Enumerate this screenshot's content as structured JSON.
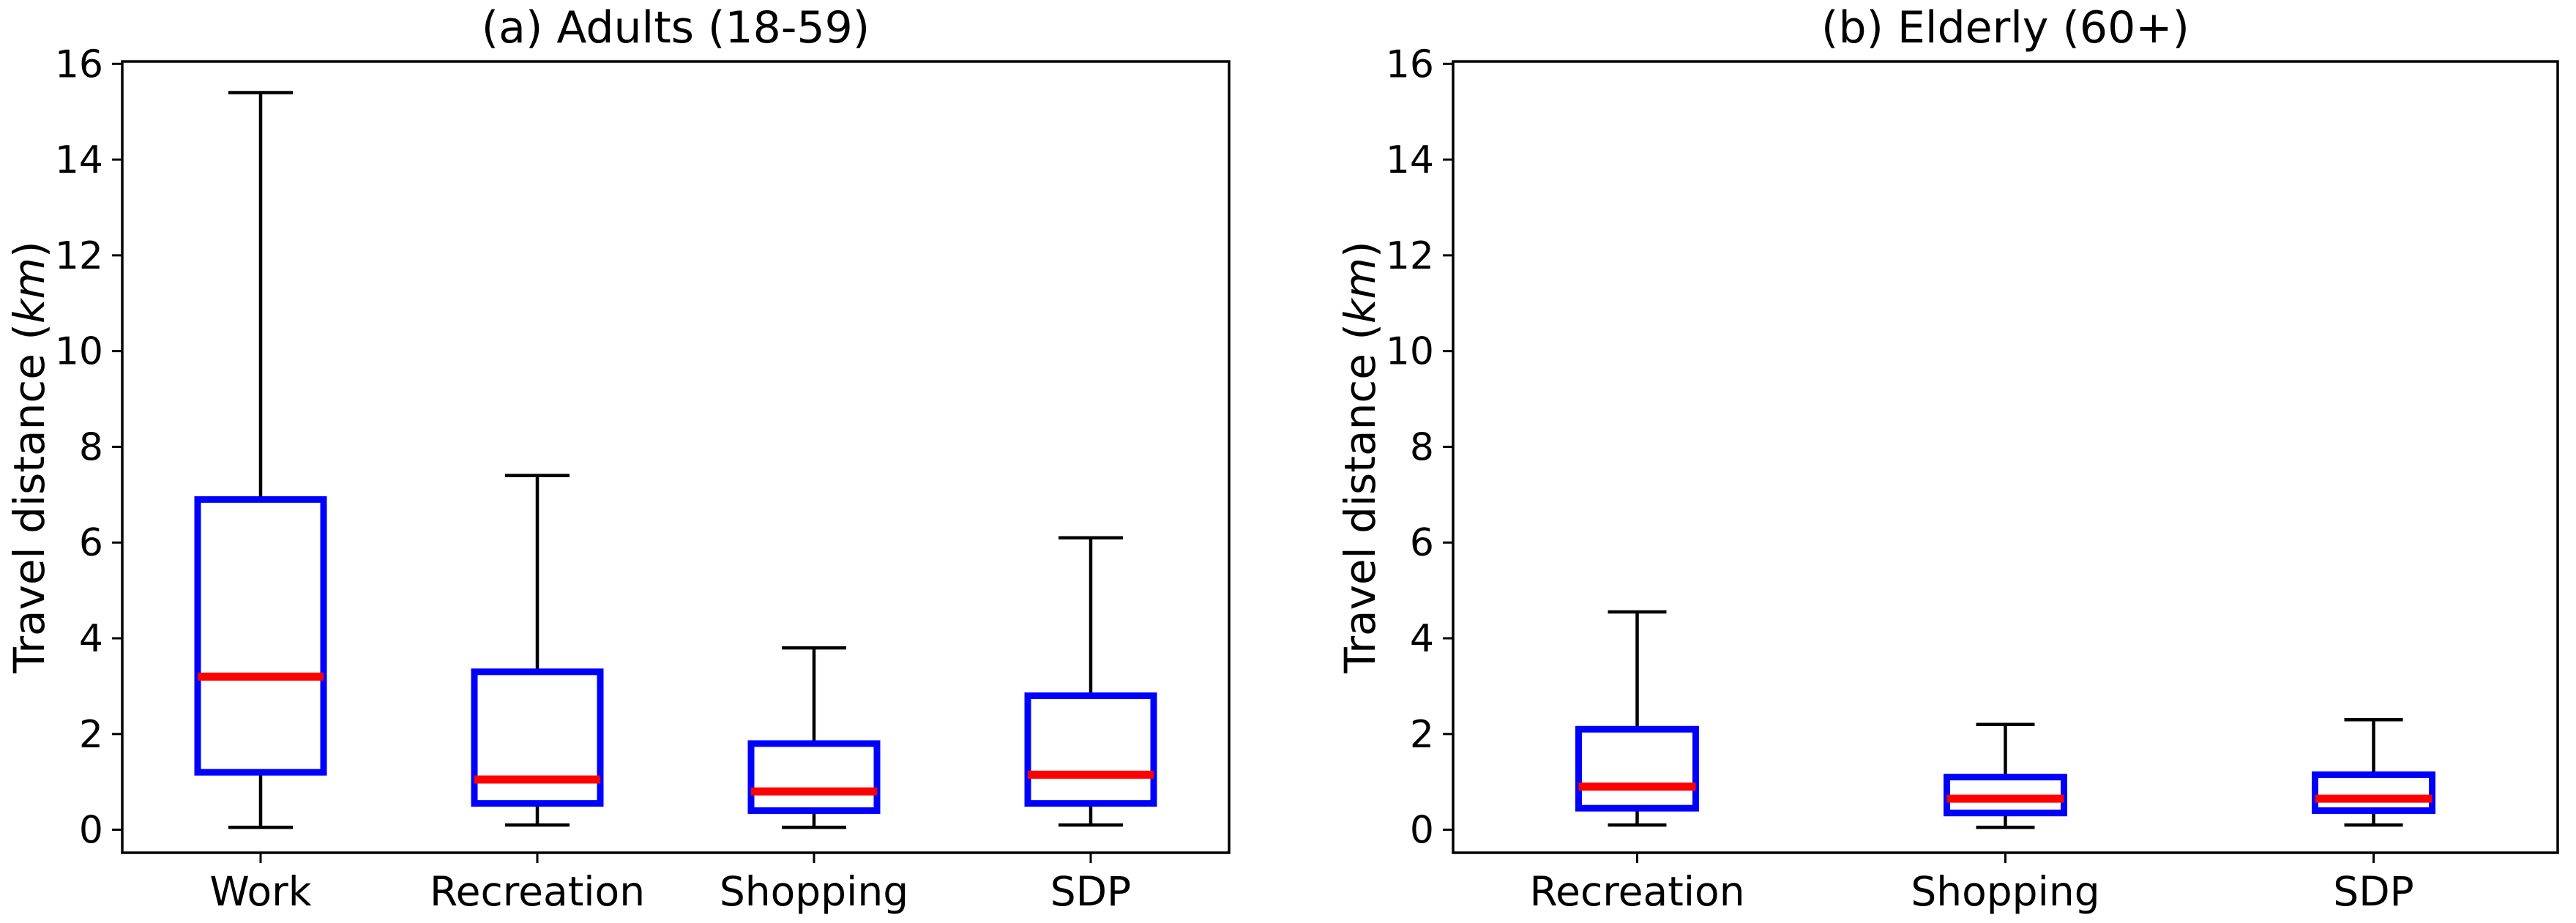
{
  "figure": {
    "background": "#ffffff",
    "colors": {
      "box": "#0000ff",
      "median": "#ff0000",
      "whisker": "#000000",
      "axis": "#000000",
      "text": "#000000"
    }
  },
  "chart_data": [
    {
      "type": "box",
      "title": "(a) Adults (18-59)",
      "ylabel": "Travel distance (km)",
      "ylabel_parts": [
        "Travel distance (",
        "km",
        ")"
      ],
      "xlabel": "",
      "categories": [
        "Work",
        "Recreation",
        "Shopping",
        "SDP"
      ],
      "yticks": [
        0,
        2,
        4,
        6,
        8,
        10,
        12,
        14,
        16
      ],
      "ylim": [
        -0.48,
        16.05
      ],
      "grid": false,
      "legend": null,
      "boxes": [
        {
          "category": "Work",
          "whisker_low": 0.05,
          "q1": 1.2,
          "median": 3.2,
          "q3": 6.9,
          "whisker_high": 15.4
        },
        {
          "category": "Recreation",
          "whisker_low": 0.1,
          "q1": 0.55,
          "median": 1.05,
          "q3": 3.3,
          "whisker_high": 7.4
        },
        {
          "category": "Shopping",
          "whisker_low": 0.05,
          "q1": 0.4,
          "median": 0.8,
          "q3": 1.8,
          "whisker_high": 3.8
        },
        {
          "category": "SDP",
          "whisker_low": 0.1,
          "q1": 0.55,
          "median": 1.15,
          "q3": 2.8,
          "whisker_high": 6.1
        }
      ]
    },
    {
      "type": "box",
      "title": "(b) Elderly (60+)",
      "ylabel": "Travel distance (km)",
      "ylabel_parts": [
        "Travel distance (",
        "km",
        ")"
      ],
      "xlabel": "",
      "categories": [
        "Recreation",
        "Shopping",
        "SDP"
      ],
      "yticks": [
        0,
        2,
        4,
        6,
        8,
        10,
        12,
        14,
        16
      ],
      "ylim": [
        -0.48,
        16.05
      ],
      "grid": false,
      "legend": null,
      "boxes": [
        {
          "category": "Recreation",
          "whisker_low": 0.1,
          "q1": 0.45,
          "median": 0.9,
          "q3": 2.1,
          "whisker_high": 4.55
        },
        {
          "category": "Shopping",
          "whisker_low": 0.05,
          "q1": 0.35,
          "median": 0.65,
          "q3": 1.1,
          "whisker_high": 2.2
        },
        {
          "category": "SDP",
          "whisker_low": 0.1,
          "q1": 0.4,
          "median": 0.65,
          "q3": 1.15,
          "whisker_high": 2.3
        }
      ]
    }
  ]
}
